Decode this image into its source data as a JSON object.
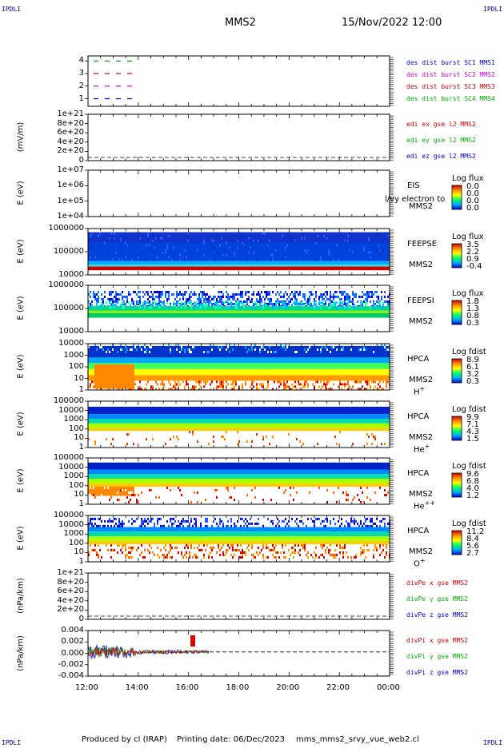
{
  "header": {
    "corner_label": "IPDLI",
    "spacecraft": "MMS2",
    "datetime": "15/Nov/2022 12:00"
  },
  "footer": {
    "produced_by": "Produced by cl (IRAP)",
    "printing_date": "Printing date: 06/Dec/2023",
    "script_name": "mms_mms2_srvy_vue_web2.cl"
  },
  "x_axis": {
    "labels": [
      "12:00",
      "14:00",
      "16:00",
      "18:00",
      "20:00",
      "22:00",
      "00:00"
    ]
  },
  "panels": [
    {
      "id": "burst",
      "ylabel": "",
      "yticks": [
        "4",
        "3",
        "2",
        "1"
      ],
      "legend": [
        {
          "text": "des dist burst SC1 MMS1",
          "color": "#0000cc"
        },
        {
          "text": "des dist burst SC2 MMS2",
          "color": "#cc00cc"
        },
        {
          "text": "des dist burst SC3 MMS3",
          "color": "#cc0000"
        },
        {
          "text": "des dist burst SC4 MMS4",
          "color": "#00aa00"
        }
      ]
    },
    {
      "id": "edi",
      "ylabel": "(mV/m)",
      "yticks": [
        "1e+21",
        "8e+20",
        "6e+20",
        "4e+20",
        "2e+20",
        "0"
      ],
      "legend": [
        {
          "text": "edi ex gse l2 MMS2",
          "color": "#cc0000"
        },
        {
          "text": "edi ey gse l2 MMS2",
          "color": "#00aa00"
        },
        {
          "text": "edi ez gse l2 MMS2",
          "color": "#0000cc"
        }
      ]
    },
    {
      "id": "eis",
      "ylabel": "E (eV)",
      "yticks": [
        "1e+07",
        "1e+06",
        "1e+05",
        "1e+04"
      ],
      "instrument": [
        "EIS",
        "MMS2"
      ],
      "overlay_text": "l/vy electron to",
      "cbar_title": "Log flux",
      "cbar_values": [
        "0.0",
        "0.0",
        "0.0",
        "0.0"
      ]
    },
    {
      "id": "feepse",
      "ylabel": "E (eV)",
      "yticks": [
        "1000000",
        "100000",
        "10000"
      ],
      "instrument": [
        "FEEPSE",
        "MMS2"
      ],
      "cbar_title": "Log flux",
      "cbar_values": [
        "3.5",
        "2.2",
        "0.9",
        "-0.4"
      ]
    },
    {
      "id": "feepsi",
      "ylabel": "E (eV)",
      "yticks": [
        "1000000",
        "100000",
        "10000"
      ],
      "instrument": [
        "FEEPSI",
        "MMS2"
      ],
      "cbar_title": "Log flux",
      "cbar_values": [
        "1.8",
        "1.3",
        "0.8",
        "0.3"
      ]
    },
    {
      "id": "hpca_h",
      "ylabel": "E (eV)",
      "yticks": [
        "10000",
        "1000",
        "100",
        "10",
        "1"
      ],
      "instrument": [
        "HPCA",
        "MMS2"
      ],
      "species": "H",
      "species_sup": "+",
      "cbar_title": "Log fdist",
      "cbar_values": [
        "8.9",
        "6.1",
        "3.2",
        "0.3"
      ]
    },
    {
      "id": "hpca_he",
      "ylabel": "E (eV)",
      "yticks": [
        "100000",
        "10000",
        "1000",
        "100",
        "10",
        "1"
      ],
      "instrument": [
        "HPCA",
        "MMS2"
      ],
      "species": "He",
      "species_sup": "+",
      "cbar_title": "Log fdist",
      "cbar_values": [
        "9.9",
        "7.1",
        "4.3",
        "1.5"
      ]
    },
    {
      "id": "hpca_hepp",
      "ylabel": "E (eV)",
      "yticks": [
        "100000",
        "10000",
        "1000",
        "100",
        "10",
        "1"
      ],
      "instrument": [
        "HPCA",
        "MMS2"
      ],
      "species": "He",
      "species_sup": "++",
      "cbar_title": "Log fdist",
      "cbar_values": [
        "9.6",
        "6.8",
        "4.0",
        "1.2"
      ]
    },
    {
      "id": "hpca_o",
      "ylabel": "E (eV)",
      "yticks": [
        "100000",
        "10000",
        "1000",
        "100",
        "10",
        "1"
      ],
      "instrument": [
        "HPCA",
        "MMS2"
      ],
      "species": "O",
      "species_sup": "+",
      "cbar_title": "Log fdist",
      "cbar_values": [
        "11.2",
        "8.4",
        "5.6",
        "2.7"
      ]
    },
    {
      "id": "divpe",
      "ylabel": "(nPa/km)",
      "yticks": [
        "1e+21",
        "8e+20",
        "6e+20",
        "4e+20",
        "2e+20",
        "0"
      ],
      "legend": [
        {
          "text": "divPe x gse MMS2",
          "color": "#cc0000"
        },
        {
          "text": "divPe y gse MMS2",
          "color": "#00aa00"
        },
        {
          "text": "divPe z gse MMS2",
          "color": "#0000cc"
        }
      ]
    },
    {
      "id": "divpi",
      "ylabel": "(nPa/km)",
      "yticks": [
        "0.004",
        "0.002",
        "0.000",
        "-0.002",
        "-0.004"
      ],
      "legend": [
        {
          "text": "divPi x gse MMS2",
          "color": "#cc0000"
        },
        {
          "text": "divPi y gse MMS2",
          "color": "#00aa00"
        },
        {
          "text": "divPi z gse MMS2",
          "color": "#0000cc"
        }
      ]
    }
  ],
  "chart_data": {
    "type": "heatmap",
    "title": "MMS2",
    "x_range": [
      "15/Nov/2022 12:00",
      "16/Nov/2022 00:00"
    ],
    "panels": 11,
    "colorscale": [
      "#0000cc",
      "#00aaff",
      "#00ff66",
      "#ffff00",
      "#ff8800",
      "#cc0000"
    ]
  }
}
